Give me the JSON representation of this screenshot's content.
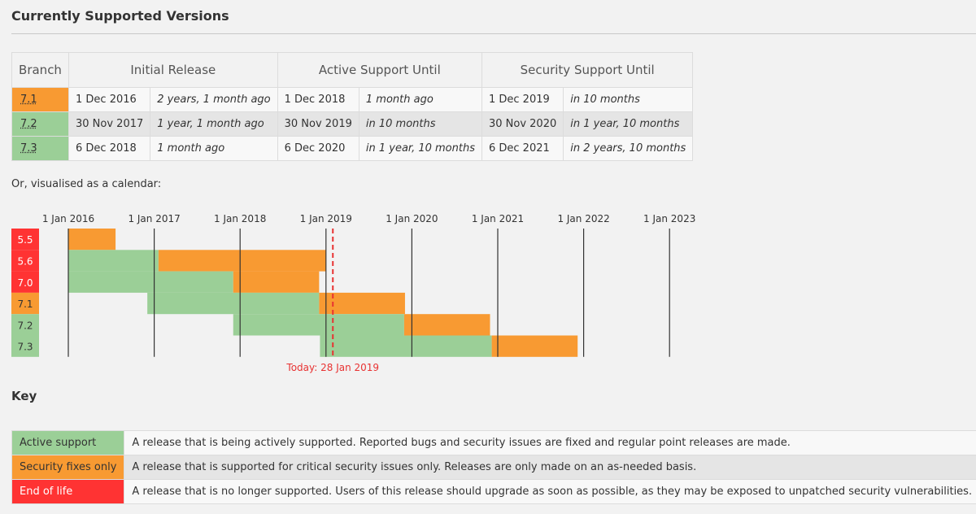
{
  "title": "Currently Supported Versions",
  "table": {
    "headers": {
      "branch": "Branch",
      "initial_release": "Initial Release",
      "active_support": "Active Support Until",
      "security_support": "Security Support Until"
    },
    "rows": [
      {
        "branch": "7.1",
        "status": "security",
        "initial": "1 Dec 2016",
        "initial_rel": "2 years, 1 month ago",
        "active": "1 Dec 2018",
        "active_rel": "1 month ago",
        "security": "1 Dec 2019",
        "security_rel": "in 10 months"
      },
      {
        "branch": "7.2",
        "status": "active",
        "initial": "30 Nov 2017",
        "initial_rel": "1 year, 1 month ago",
        "active": "30 Nov 2019",
        "active_rel": "in 10 months",
        "security": "30 Nov 2020",
        "security_rel": "in 1 year, 10 months"
      },
      {
        "branch": "7.3",
        "status": "active",
        "initial": "6 Dec 2018",
        "initial_rel": "1 month ago",
        "active": "6 Dec 2020",
        "active_rel": "in 1 year, 10 months",
        "security": "6 Dec 2021",
        "security_rel": "in 2 years, 10 months"
      }
    ]
  },
  "calendar_caption": "Or, visualised as a calendar:",
  "calendar": {
    "year_labels": [
      "1 Jan 2016",
      "1 Jan 2017",
      "1 Jan 2018",
      "1 Jan 2019",
      "1 Jan 2020",
      "1 Jan 2021",
      "1 Jan 2022",
      "1 Jan 2023"
    ],
    "today_label": "Today: 28 Jan 2019",
    "today": 2019.08,
    "branches": [
      {
        "name": "5.5",
        "status": "eol",
        "active_until": null,
        "security_from": 2016.0,
        "security_until": 2016.55
      },
      {
        "name": "5.6",
        "status": "eol",
        "active_from": 2016.0,
        "active_until": 2017.05,
        "security_until": 2019.0
      },
      {
        "name": "7.0",
        "status": "eol",
        "active_from": 2016.0,
        "active_until": 2017.92,
        "security_until": 2018.92
      },
      {
        "name": "7.1",
        "status": "security",
        "active_from": 2016.92,
        "active_until": 2018.92,
        "security_until": 2019.92
      },
      {
        "name": "7.2",
        "status": "active",
        "active_from": 2017.92,
        "active_until": 2019.91,
        "security_until": 2020.91
      },
      {
        "name": "7.3",
        "status": "active",
        "active_from": 2018.93,
        "active_until": 2020.93,
        "security_until": 2021.93
      }
    ]
  },
  "colors": {
    "active": "#9bcf97",
    "security": "#f89a32",
    "eol": "#ff3333",
    "today": "#e83232"
  },
  "key": {
    "heading": "Key",
    "items": [
      {
        "status": "active",
        "label": "Active support",
        "desc": "A release that is being actively supported. Reported bugs and security issues are fixed and regular point releases are made."
      },
      {
        "status": "security",
        "label": "Security fixes only",
        "desc": "A release that is supported for critical security issues only. Releases are only made on an as-needed basis."
      },
      {
        "status": "eol",
        "label": "End of life",
        "desc": "A release that is no longer supported. Users of this release should upgrade as soon as possible, as they may be exposed to unpatched security vulnerabilities."
      }
    ]
  }
}
